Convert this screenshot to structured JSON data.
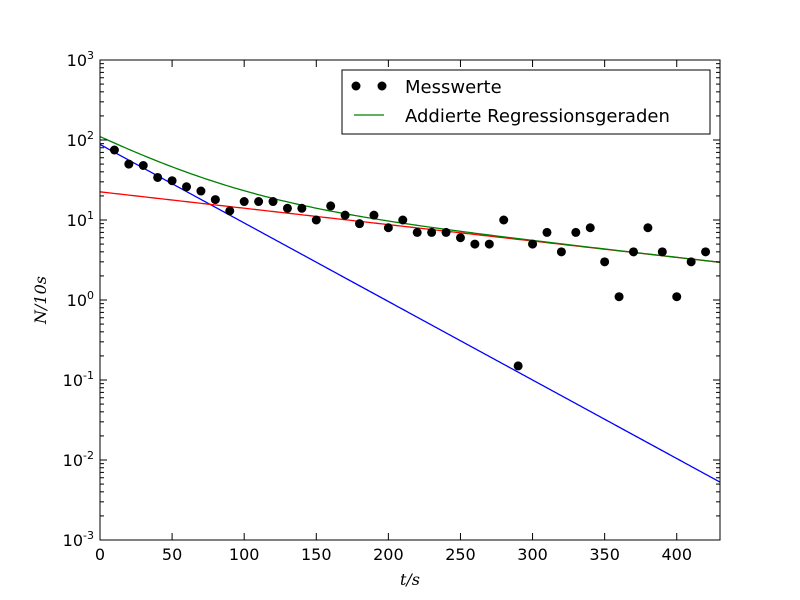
{
  "chart_data": {
    "type": "scatter",
    "xlabel": "t/s",
    "ylabel": "N/10s",
    "xlim": [
      0,
      430
    ],
    "ylim": [
      0.001,
      1000
    ],
    "yscale": "log",
    "grid": false,
    "legend_position": "top-right",
    "x_ticks": [
      0,
      50,
      100,
      150,
      200,
      250,
      300,
      350,
      400
    ],
    "y_ticks": [
      {
        "value": 0.001,
        "base": "10",
        "exp": "-3"
      },
      {
        "value": 0.01,
        "base": "10",
        "exp": "-2"
      },
      {
        "value": 0.1,
        "base": "10",
        "exp": "-1"
      },
      {
        "value": 1,
        "base": "10",
        "exp": "0"
      },
      {
        "value": 10,
        "base": "10",
        "exp": "1"
      },
      {
        "value": 100,
        "base": "10",
        "exp": "2"
      },
      {
        "value": 1000,
        "base": "10",
        "exp": "3"
      }
    ],
    "series": [
      {
        "name": "Messwerte",
        "kind": "scatter",
        "color": "#000000",
        "x": [
          10,
          20,
          30,
          40,
          50,
          60,
          70,
          80,
          90,
          100,
          110,
          120,
          130,
          140,
          150,
          160,
          170,
          180,
          190,
          200,
          210,
          220,
          230,
          240,
          250,
          260,
          270,
          280,
          290,
          300,
          310,
          320,
          330,
          340,
          350,
          360,
          370,
          380,
          390,
          400,
          410,
          420
        ],
        "y": [
          75,
          50,
          48,
          34,
          31,
          26,
          23,
          18,
          13,
          17,
          17,
          17,
          14,
          14,
          10,
          15,
          11.5,
          9,
          11.5,
          8,
          10,
          7,
          7,
          7,
          6,
          5,
          5,
          10,
          0.15,
          5,
          7,
          4,
          7,
          8,
          3,
          1.1,
          4,
          8,
          4,
          1.1,
          3,
          4
        ]
      },
      {
        "name": "Addierte Regressionsgeraden",
        "kind": "line",
        "color": "#008000",
        "components": [
          "fast",
          "slow"
        ]
      },
      {
        "kind": "line",
        "color": "#0000ff",
        "id": "fast",
        "amplitude": 88,
        "rate": 0.0226
      },
      {
        "kind": "line",
        "color": "#ff0000",
        "id": "slow",
        "amplitude": 22.5,
        "rate": 0.00472
      }
    ]
  }
}
